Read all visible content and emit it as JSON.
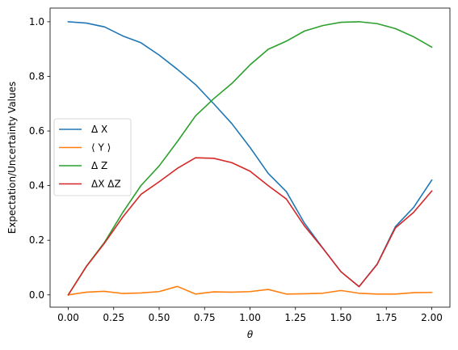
{
  "chart_data": {
    "type": "line",
    "xlabel": "θ",
    "ylabel": "Expectation/Uncertainty Values",
    "xlim": [
      -0.1,
      2.1
    ],
    "ylim": [
      -0.045,
      1.05
    ],
    "xticks": [
      0.0,
      0.25,
      0.5,
      0.75,
      1.0,
      1.25,
      1.5,
      1.75,
      2.0
    ],
    "xtick_labels": [
      "0.00",
      "0.25",
      "0.50",
      "0.75",
      "1.00",
      "1.25",
      "1.50",
      "1.75",
      "2.00"
    ],
    "yticks": [
      0.0,
      0.2,
      0.4,
      0.6,
      0.8,
      1.0
    ],
    "ytick_labels": [
      "0.0",
      "0.2",
      "0.4",
      "0.6",
      "0.8",
      "1.0"
    ],
    "grid": false,
    "legend_position": "center-left",
    "x": [
      0.0,
      0.1,
      0.2,
      0.3,
      0.4,
      0.5,
      0.6,
      0.7,
      0.8,
      0.9,
      1.0,
      1.1,
      1.2,
      1.3,
      1.4,
      1.5,
      1.6,
      1.7,
      1.8,
      1.9,
      2.0
    ],
    "series": [
      {
        "name": "Δ X",
        "color": "#1f77b4",
        "values": [
          1.0,
          0.995,
          0.981,
          0.948,
          0.923,
          0.878,
          0.826,
          0.77,
          0.7,
          0.627,
          0.54,
          0.445,
          0.378,
          0.262,
          0.172,
          0.085,
          0.03,
          0.113,
          0.25,
          0.32,
          0.42
        ]
      },
      {
        "name": "⟨ Y ⟩",
        "color": "#ff7f0e",
        "values": [
          0.0,
          0.01,
          0.013,
          0.005,
          0.007,
          0.012,
          0.031,
          0.003,
          0.011,
          0.01,
          0.012,
          0.02,
          0.003,
          0.004,
          0.006,
          0.016,
          0.006,
          0.003,
          0.003,
          0.008,
          0.009
        ]
      },
      {
        "name": "Δ Z",
        "color": "#2ca02c",
        "values": [
          0.0,
          0.105,
          0.193,
          0.302,
          0.4,
          0.472,
          0.561,
          0.655,
          0.718,
          0.774,
          0.842,
          0.899,
          0.929,
          0.966,
          0.986,
          0.998,
          1.0,
          0.993,
          0.975,
          0.945,
          0.907
        ]
      },
      {
        "name": "ΔX ΔZ",
        "color": "#d62728",
        "values": [
          0.0,
          0.104,
          0.19,
          0.285,
          0.368,
          0.414,
          0.463,
          0.502,
          0.5,
          0.484,
          0.453,
          0.4,
          0.351,
          0.252,
          0.171,
          0.085,
          0.03,
          0.112,
          0.245,
          0.302,
          0.38
        ]
      }
    ]
  }
}
